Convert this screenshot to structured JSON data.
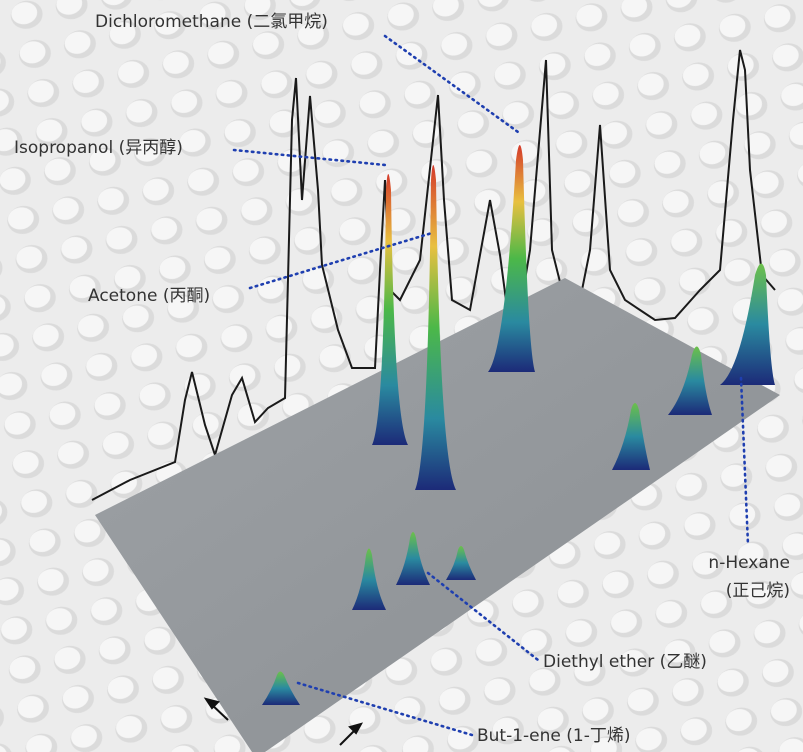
{
  "labels": {
    "dichloromethane": "Dichloromethane (二氯甲烷)",
    "isopropanol": "Isopropanol (异丙醇)",
    "acetone": "Acetone (丙酮)",
    "n_hexane": [
      "n-Hexane",
      "(正己烷)"
    ],
    "diethyl_ether": "Diethyl ether (乙醚)",
    "but_1_ene": "But-1-ene (1-丁烯)"
  }
}
